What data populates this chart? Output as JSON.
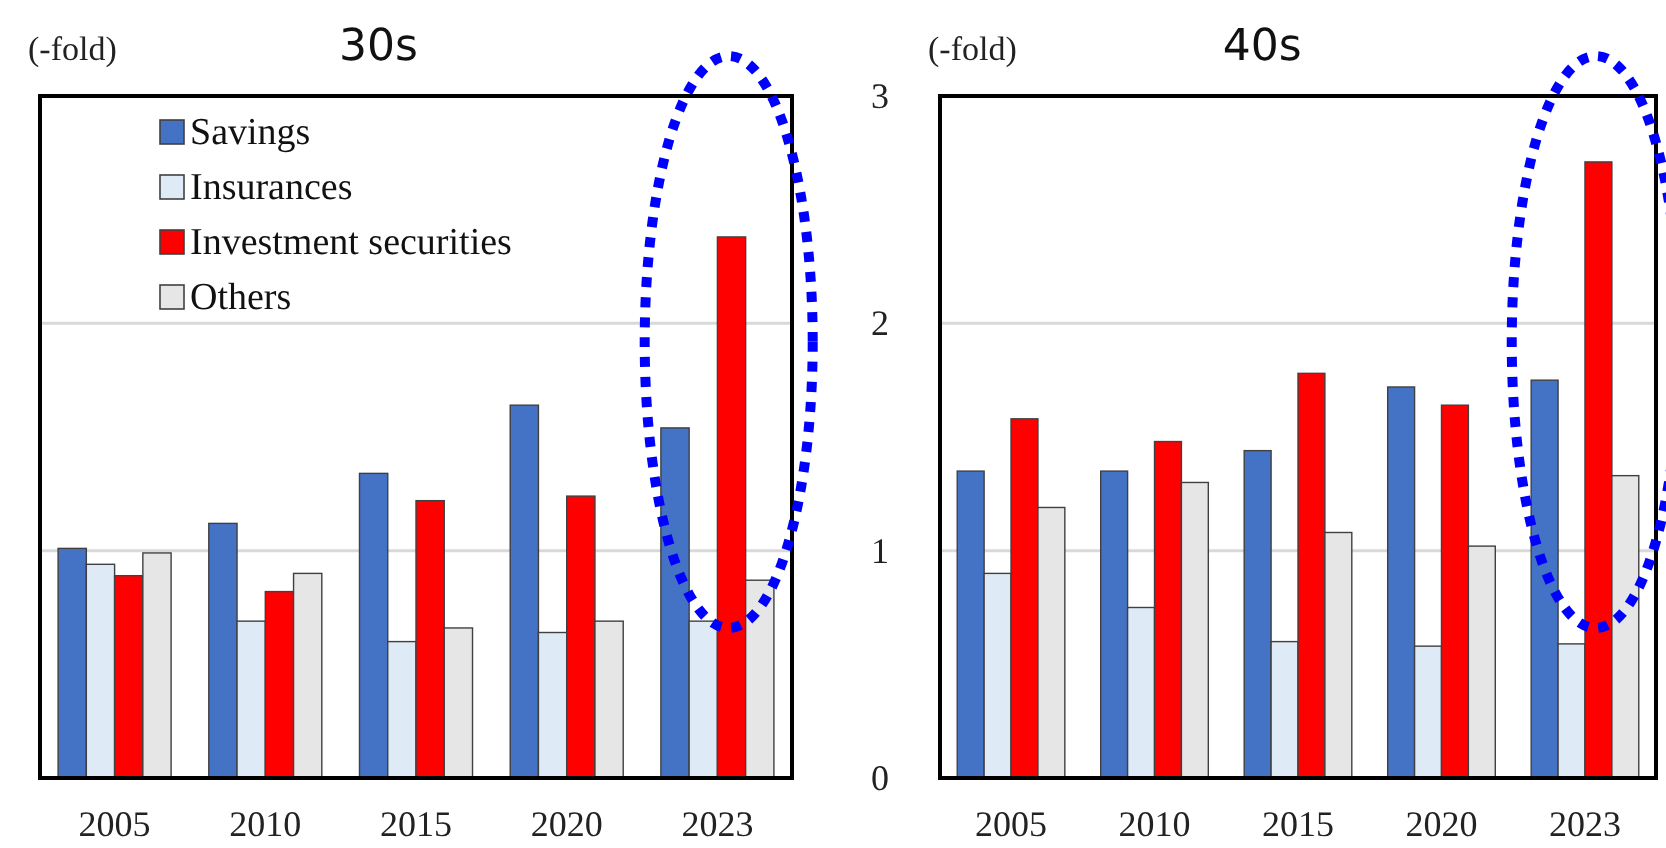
{
  "chart_data": [
    {
      "type": "bar",
      "title": "30s",
      "annotations": [
        "(-fold)"
      ],
      "categories": [
        "2005",
        "2010",
        "2015",
        "2020",
        "2023"
      ],
      "ylim": [
        0,
        3
      ],
      "yticks": [
        0,
        1,
        2,
        3
      ],
      "tick_labels": "x",
      "grid": "y",
      "legend": "top left",
      "series": [
        {
          "name": "Savings",
          "color": "#4472c4",
          "values": [
            1.01,
            1.12,
            1.34,
            1.64,
            1.54
          ]
        },
        {
          "name": "Insurances",
          "color": "#deebf7",
          "values": [
            0.94,
            0.69,
            0.6,
            0.64,
            0.69
          ]
        },
        {
          "name": "Investment securities",
          "color": "#ff0000",
          "values": [
            0.89,
            0.82,
            1.22,
            1.24,
            2.38
          ]
        },
        {
          "name": "Others",
          "color": "#e7e6e6",
          "values": [
            0.99,
            0.9,
            0.66,
            0.69,
            0.87
          ]
        }
      ]
    },
    {
      "type": "bar",
      "title": "40s",
      "annotations": [
        "(-fold)"
      ],
      "categories": [
        "2005",
        "2010",
        "2015",
        "2020",
        "2023"
      ],
      "ylim": [
        0,
        3
      ],
      "yticks": [
        0,
        1,
        2,
        3
      ],
      "grid": "y",
      "legend": false,
      "series": [
        {
          "color": "#4472c4",
          "values": [
            1.35,
            1.35,
            1.44,
            1.72,
            1.75
          ]
        },
        {
          "color": "#deebf7",
          "values": [
            0.9,
            0.75,
            0.6,
            0.58,
            0.59
          ]
        },
        {
          "color": "#ff0000",
          "values": [
            1.58,
            1.48,
            1.78,
            1.64,
            2.71
          ]
        },
        {
          "color": "#e7e6e6",
          "values": [
            1.19,
            1.3,
            1.08,
            1.02,
            1.33
          ]
        }
      ]
    }
  ]
}
